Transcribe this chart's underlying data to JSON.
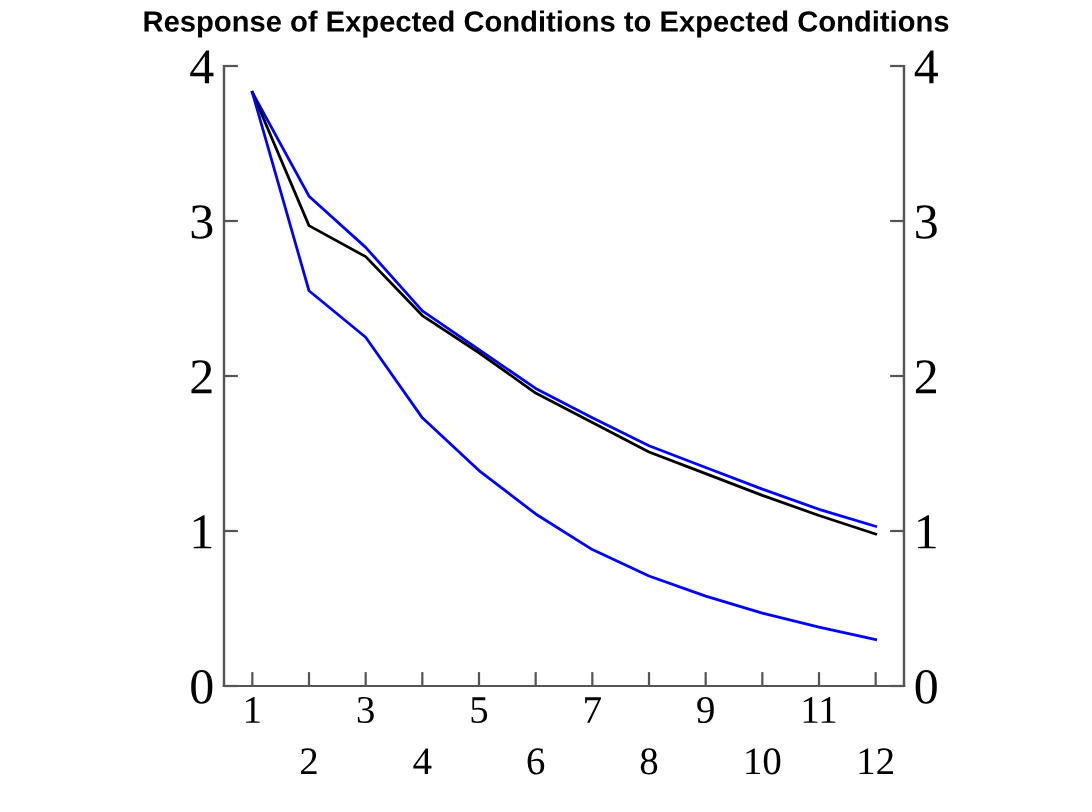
{
  "chart_data": {
    "type": "line",
    "title": "Response of Expected Conditions to Expected Conditions",
    "x": [
      1,
      2,
      3,
      4,
      5,
      6,
      7,
      8,
      9,
      10,
      11,
      12
    ],
    "series": [
      {
        "color": "#0000ff",
        "values": [
          3.83,
          3.16,
          2.83,
          2.42,
          2.17,
          1.92,
          1.73,
          1.55,
          1.41,
          1.27,
          1.14,
          1.03
        ]
      },
      {
        "color": "#000000",
        "values": [
          3.83,
          2.97,
          2.77,
          2.39,
          2.15,
          1.89,
          1.7,
          1.51,
          1.37,
          1.23,
          1.1,
          0.98
        ]
      },
      {
        "color": "#0000ff",
        "values": [
          3.83,
          2.55,
          2.25,
          1.73,
          1.39,
          1.11,
          0.88,
          0.71,
          0.58,
          0.47,
          0.38,
          0.3
        ]
      }
    ],
    "xlim": [
      0.5,
      12.5
    ],
    "xticks": [
      1,
      {
        "value": 2,
        "label": null
      },
      3,
      {
        "value": 4,
        "label": null
      },
      5,
      {
        "value": 6,
        "label": null
      },
      7,
      {
        "value": 8,
        "label": null
      },
      9,
      {
        "value": 10,
        "label": null
      },
      11,
      {
        "value": 12,
        "label": null
      }
    ],
    "x2lim": [
      0.5,
      12.5
    ],
    "x2ticks": [
      2,
      4,
      6,
      8,
      10,
      12
    ],
    "ylim": [
      0,
      4
    ],
    "yticks": [
      0,
      1,
      2,
      3,
      4
    ],
    "y2lim": [
      0,
      4
    ],
    "y2ticks": [
      0,
      1,
      2,
      3,
      4
    ],
    "grid": false,
    "line_style": "solid"
  }
}
